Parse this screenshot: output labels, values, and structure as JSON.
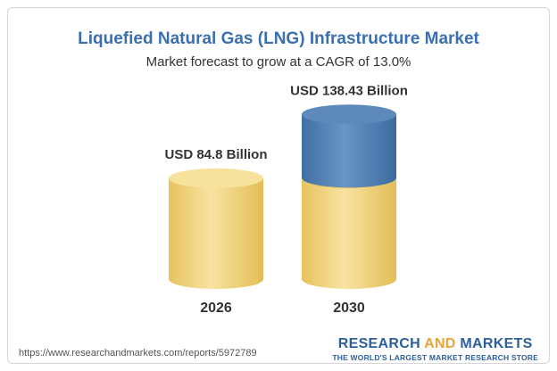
{
  "chart_data": {
    "type": "bar",
    "title": "Liquefied Natural Gas (LNG) Infrastructure Market",
    "subtitle": "Market forecast to grow at a CAGR of 13.0%",
    "categories": [
      "2026",
      "2030"
    ],
    "values": [
      84.8,
      138.43
    ],
    "data_labels": [
      "USD 84.8 Billion",
      "USD 138.43 Billion"
    ],
    "unit": "USD Billion",
    "grid": false,
    "legend": "none",
    "colors": {
      "base": "#f2d27a",
      "growth": "#4f7db0"
    }
  },
  "footer": {
    "url": "https://www.researchandmarkets.com/reports/5972789",
    "brand_part1": "RESEARCH ",
    "brand_part2": "AND",
    "brand_part3": " MARKETS",
    "tagline": "THE WORLD'S LARGEST MARKET RESEARCH STORE"
  }
}
